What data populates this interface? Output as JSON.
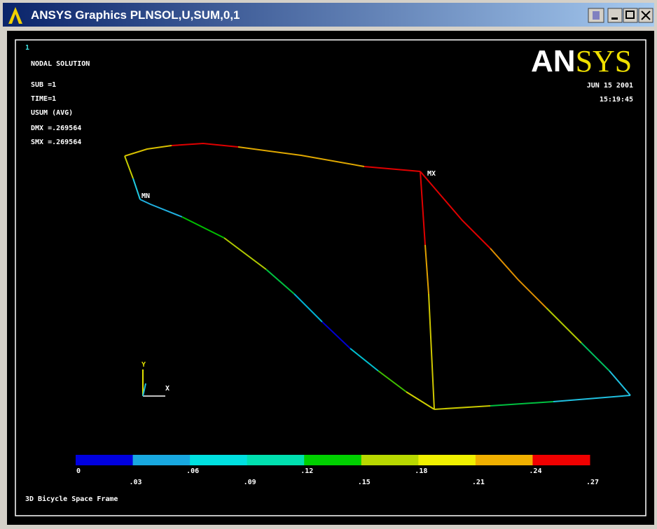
{
  "window": {
    "title": "ANSYS Graphics   PLNSOL,U,SUM,0,1"
  },
  "graphics": {
    "window_number": "1",
    "info": [
      "NODAL SOLUTION",
      "SUB =1",
      "TIME=1",
      "USUM     (AVG)",
      "DMX =.269564",
      "SMX =.269564"
    ],
    "logo": {
      "left": "AN",
      "right": "SYS"
    },
    "date": "JUN 15 2001",
    "time": "15:19:45",
    "max_label": "MX",
    "min_label": "MN",
    "axis_y": "Y",
    "axis_x": "X",
    "legend": {
      "colors": [
        "#0000e0",
        "#18a8e0",
        "#00e0e0",
        "#00e0b0",
        "#00d000",
        "#b8d800",
        "#f0f000",
        "#f0b000",
        "#f00000"
      ],
      "labels": [
        "0",
        ".03",
        ".06",
        ".09",
        ".12",
        ".15",
        ".18",
        ".21",
        ".24",
        ".27"
      ]
    },
    "caption": "3D Bicycle Space Frame"
  }
}
